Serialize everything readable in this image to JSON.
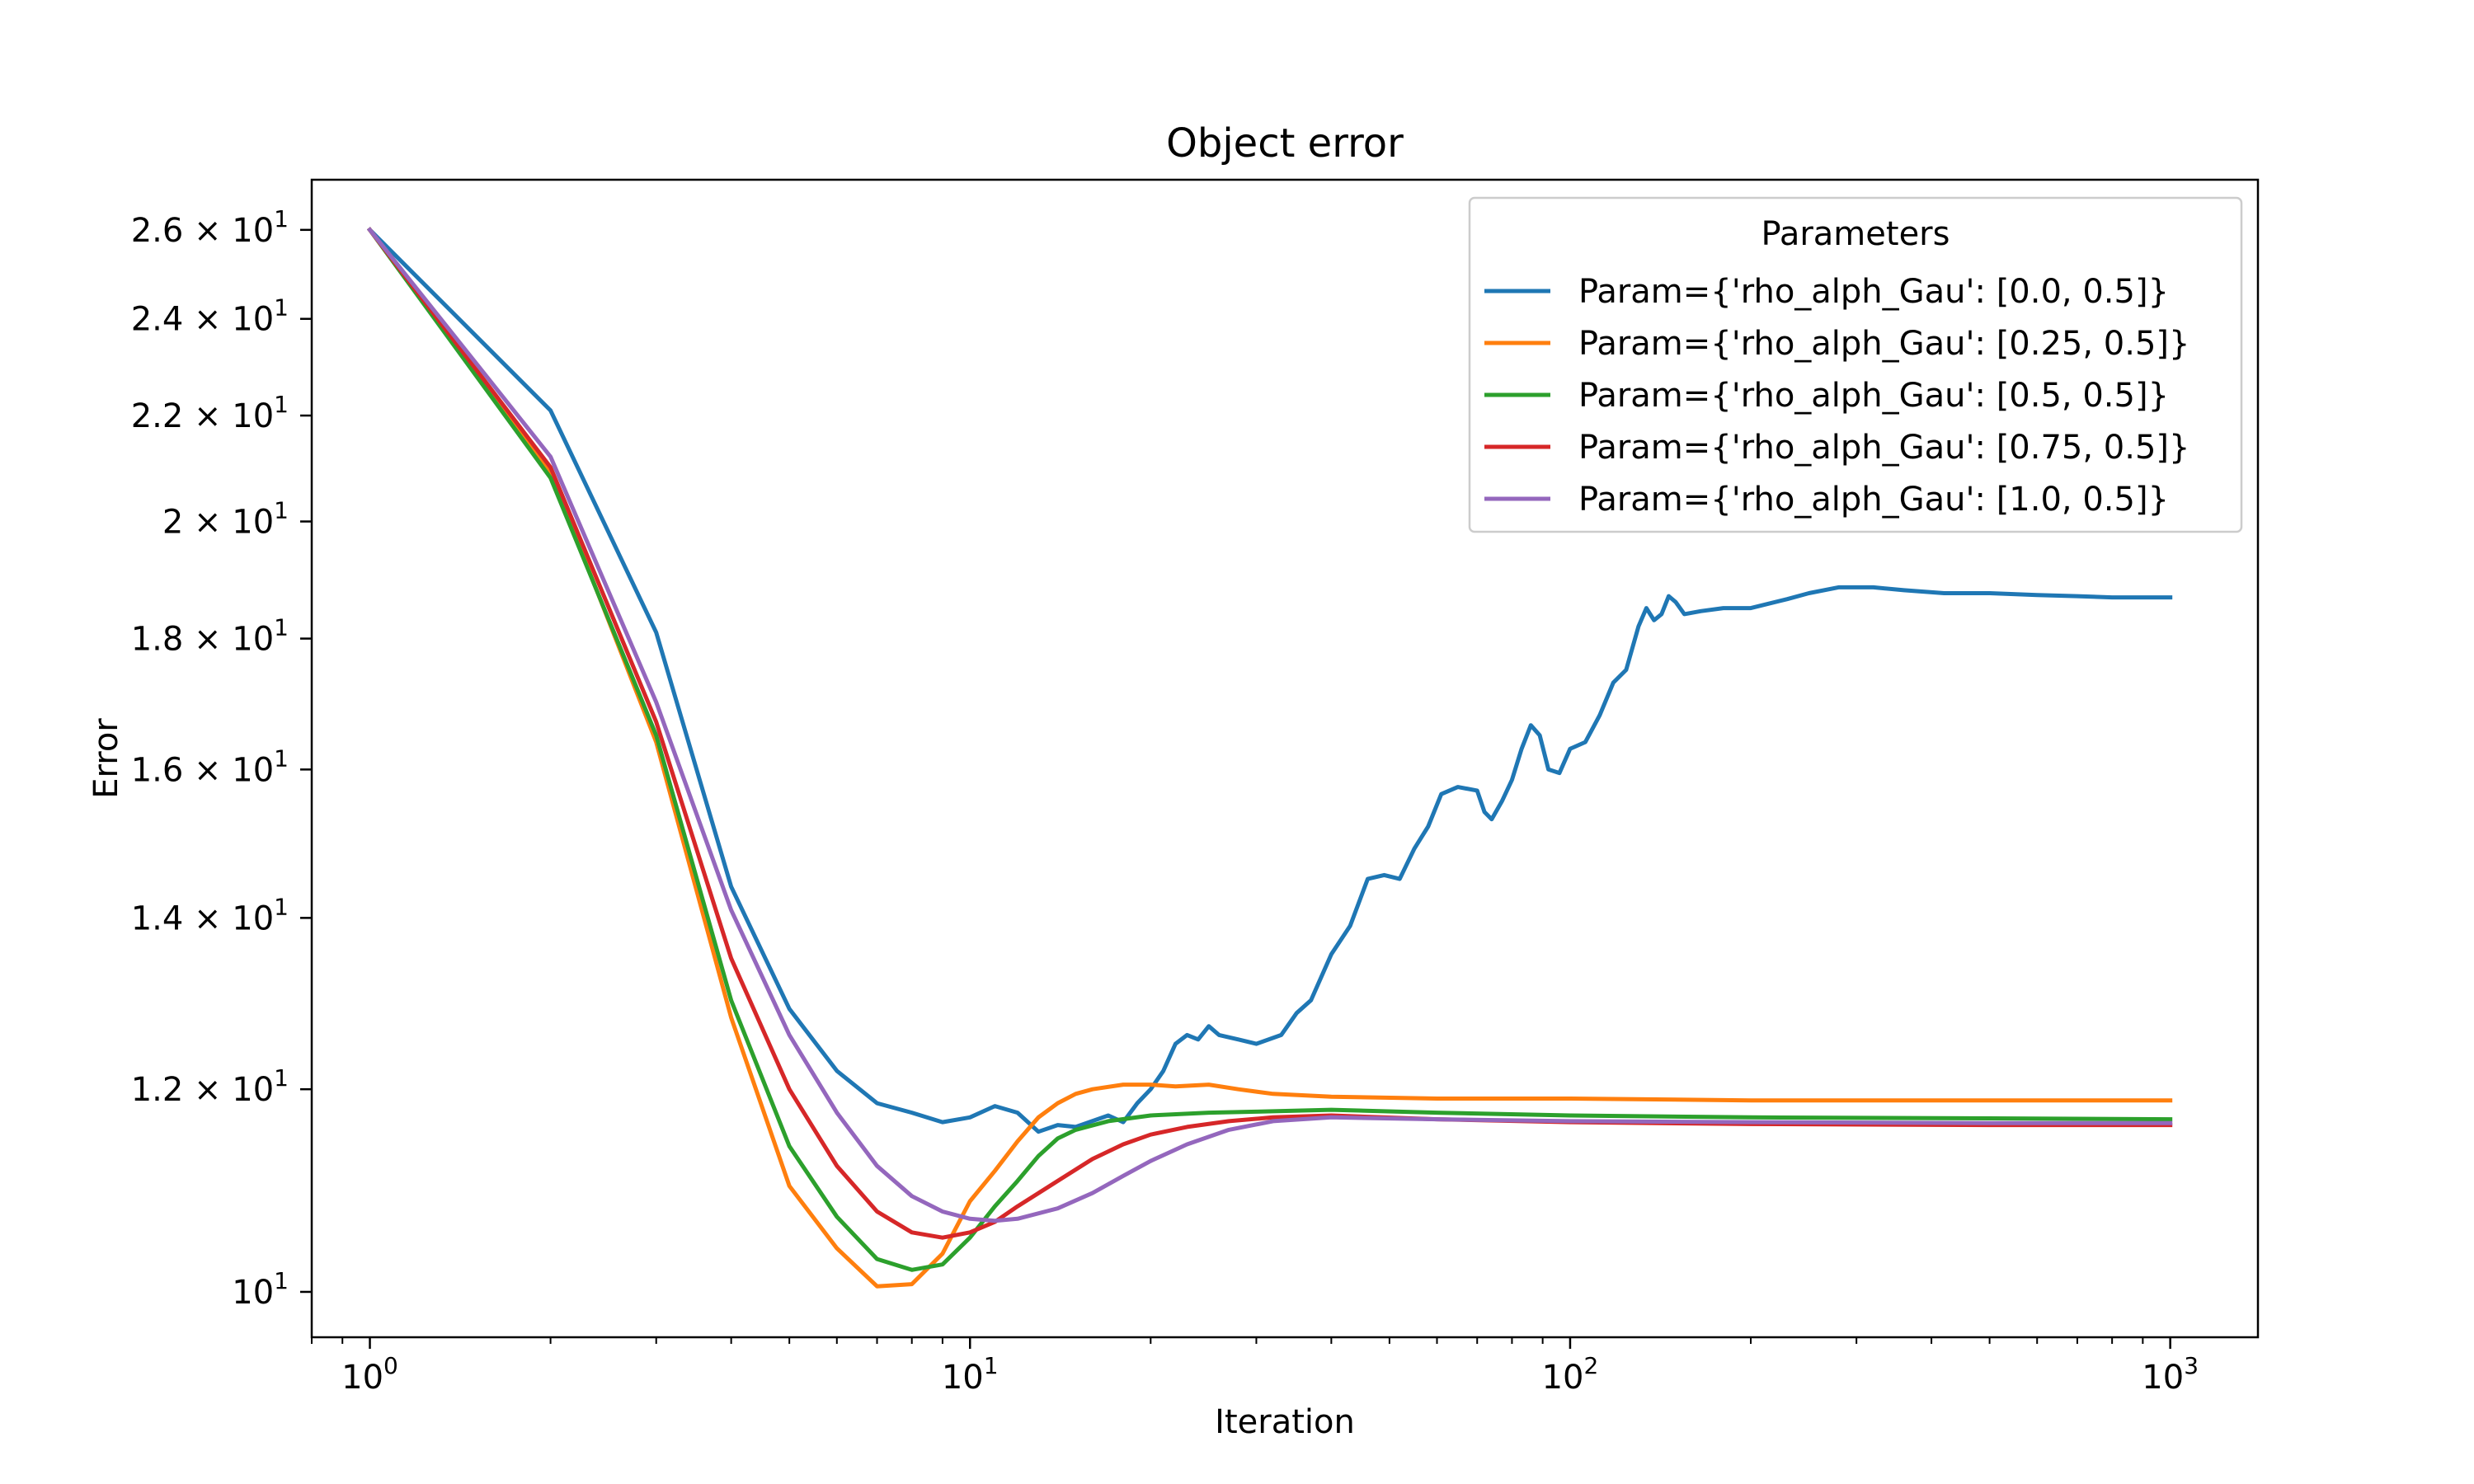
{
  "chart_data": {
    "type": "line",
    "title": "Object error",
    "xlabel": "Iteration",
    "ylabel": "Error",
    "xscale": "log",
    "yscale": "log",
    "xlim": [
      0.8,
      1400
    ],
    "ylim": [
      9.6,
      27.2
    ],
    "grid": false,
    "legend": {
      "title": "Parameters",
      "placement": "top-right"
    },
    "x_ticks": [
      {
        "value": 1,
        "base": "10",
        "exp": "0"
      },
      {
        "value": 10,
        "base": "10",
        "exp": "1"
      },
      {
        "value": 100,
        "base": "10",
        "exp": "2"
      },
      {
        "value": 1000,
        "base": "10",
        "exp": "3"
      }
    ],
    "y_ticks": [
      {
        "value": 10,
        "mant": "",
        "exp": "1"
      },
      {
        "value": 12,
        "mant": "1.2",
        "exp": "1"
      },
      {
        "value": 14,
        "mant": "1.4",
        "exp": "1"
      },
      {
        "value": 16,
        "mant": "1.6",
        "exp": "1"
      },
      {
        "value": 18,
        "mant": "1.8",
        "exp": "1"
      },
      {
        "value": 20,
        "mant": "2",
        "exp": "1"
      },
      {
        "value": 22,
        "mant": "2.2",
        "exp": "1"
      },
      {
        "value": 24,
        "mant": "2.4",
        "exp": "1"
      },
      {
        "value": 26,
        "mant": "2.6",
        "exp": "1"
      }
    ],
    "series": [
      {
        "name": "Param={'rho_alph_Gau': [0.0, 0.5]}",
        "color": "#1f77b4",
        "points": [
          [
            1,
            26.0
          ],
          [
            2,
            22.1
          ],
          [
            3,
            18.1
          ],
          [
            4,
            14.4
          ],
          [
            5,
            12.9
          ],
          [
            6,
            12.2
          ],
          [
            7,
            11.85
          ],
          [
            8,
            11.75
          ],
          [
            9,
            11.65
          ],
          [
            10,
            11.7
          ],
          [
            11,
            11.82
          ],
          [
            12,
            11.75
          ],
          [
            13,
            11.55
          ],
          [
            14,
            11.62
          ],
          [
            15,
            11.6
          ],
          [
            17,
            11.72
          ],
          [
            18,
            11.65
          ],
          [
            19,
            11.85
          ],
          [
            20,
            12.0
          ],
          [
            21,
            12.2
          ],
          [
            22,
            12.5
          ],
          [
            23,
            12.6
          ],
          [
            24,
            12.55
          ],
          [
            25,
            12.7
          ],
          [
            26,
            12.6
          ],
          [
            28,
            12.55
          ],
          [
            30,
            12.5
          ],
          [
            33,
            12.6
          ],
          [
            35,
            12.85
          ],
          [
            37,
            13.0
          ],
          [
            40,
            13.55
          ],
          [
            43,
            13.9
          ],
          [
            46,
            14.5
          ],
          [
            49,
            14.55
          ],
          [
            52,
            14.5
          ],
          [
            55,
            14.9
          ],
          [
            58,
            15.2
          ],
          [
            61,
            15.65
          ],
          [
            65,
            15.75
          ],
          [
            70,
            15.7
          ],
          [
            72,
            15.4
          ],
          [
            74,
            15.3
          ],
          [
            77,
            15.55
          ],
          [
            80,
            15.85
          ],
          [
            83,
            16.3
          ],
          [
            86,
            16.65
          ],
          [
            89,
            16.5
          ],
          [
            92,
            16.0
          ],
          [
            96,
            15.95
          ],
          [
            100,
            16.3
          ],
          [
            106,
            16.4
          ],
          [
            112,
            16.8
          ],
          [
            118,
            17.3
          ],
          [
            124,
            17.5
          ],
          [
            130,
            18.2
          ],
          [
            134,
            18.5
          ],
          [
            138,
            18.3
          ],
          [
            142,
            18.4
          ],
          [
            146,
            18.7
          ],
          [
            150,
            18.6
          ],
          [
            155,
            18.4
          ],
          [
            165,
            18.45
          ],
          [
            180,
            18.5
          ],
          [
            200,
            18.5
          ],
          [
            230,
            18.65
          ],
          [
            250,
            18.75
          ],
          [
            280,
            18.85
          ],
          [
            320,
            18.85
          ],
          [
            360,
            18.8
          ],
          [
            420,
            18.75
          ],
          [
            500,
            18.75
          ],
          [
            600,
            18.72
          ],
          [
            700,
            18.7
          ],
          [
            800,
            18.68
          ],
          [
            1000,
            18.68
          ]
        ]
      },
      {
        "name": "Param={'rho_alph_Gau': [0.25, 0.5]}",
        "color": "#ff7f0e",
        "points": [
          [
            1,
            26.0
          ],
          [
            2,
            20.9
          ],
          [
            3,
            16.4
          ],
          [
            4,
            12.8
          ],
          [
            5,
            11.0
          ],
          [
            6,
            10.4
          ],
          [
            7,
            10.05
          ],
          [
            8,
            10.07
          ],
          [
            9,
            10.35
          ],
          [
            10,
            10.85
          ],
          [
            11,
            11.15
          ],
          [
            12,
            11.45
          ],
          [
            13,
            11.7
          ],
          [
            14,
            11.85
          ],
          [
            15,
            11.95
          ],
          [
            16,
            12.0
          ],
          [
            18,
            12.05
          ],
          [
            20,
            12.05
          ],
          [
            22,
            12.03
          ],
          [
            25,
            12.05
          ],
          [
            28,
            12.0
          ],
          [
            32,
            11.95
          ],
          [
            40,
            11.92
          ],
          [
            60,
            11.9
          ],
          [
            100,
            11.9
          ],
          [
            200,
            11.88
          ],
          [
            500,
            11.88
          ],
          [
            1000,
            11.88
          ]
        ]
      },
      {
        "name": "Param={'rho_alph_Gau': [0.5, 0.5]}",
        "color": "#2ca02c",
        "points": [
          [
            1,
            26.0
          ],
          [
            2,
            20.8
          ],
          [
            3,
            16.5
          ],
          [
            4,
            13.0
          ],
          [
            5,
            11.4
          ],
          [
            6,
            10.7
          ],
          [
            7,
            10.3
          ],
          [
            8,
            10.2
          ],
          [
            9,
            10.25
          ],
          [
            10,
            10.5
          ],
          [
            11,
            10.8
          ],
          [
            12,
            11.05
          ],
          [
            13,
            11.3
          ],
          [
            14,
            11.48
          ],
          [
            15,
            11.57
          ],
          [
            17,
            11.66
          ],
          [
            20,
            11.72
          ],
          [
            25,
            11.75
          ],
          [
            30,
            11.76
          ],
          [
            40,
            11.78
          ],
          [
            60,
            11.75
          ],
          [
            100,
            11.72
          ],
          [
            200,
            11.7
          ],
          [
            500,
            11.69
          ],
          [
            1000,
            11.68
          ]
        ]
      },
      {
        "name": "Param={'rho_alph_Gau': [0.75, 0.5]}",
        "color": "#d62728",
        "points": [
          [
            1,
            26.0
          ],
          [
            2,
            21.0
          ],
          [
            3,
            16.7
          ],
          [
            4,
            13.5
          ],
          [
            5,
            12.0
          ],
          [
            6,
            11.2
          ],
          [
            7,
            10.75
          ],
          [
            8,
            10.55
          ],
          [
            9,
            10.5
          ],
          [
            10,
            10.55
          ],
          [
            11,
            10.65
          ],
          [
            12,
            10.8
          ],
          [
            14,
            11.05
          ],
          [
            16,
            11.27
          ],
          [
            18,
            11.42
          ],
          [
            20,
            11.52
          ],
          [
            23,
            11.6
          ],
          [
            27,
            11.66
          ],
          [
            32,
            11.7
          ],
          [
            40,
            11.72
          ],
          [
            60,
            11.68
          ],
          [
            100,
            11.65
          ],
          [
            200,
            11.63
          ],
          [
            500,
            11.62
          ],
          [
            1000,
            11.62
          ]
        ]
      },
      {
        "name": "Param={'rho_alph_Gau': [1.0, 0.5]}",
        "color": "#9467bd",
        "points": [
          [
            1,
            26.0
          ],
          [
            2,
            21.2
          ],
          [
            3,
            17.0
          ],
          [
            4,
            14.1
          ],
          [
            5,
            12.6
          ],
          [
            6,
            11.75
          ],
          [
            7,
            11.2
          ],
          [
            8,
            10.9
          ],
          [
            9,
            10.75
          ],
          [
            10,
            10.68
          ],
          [
            11,
            10.66
          ],
          [
            12,
            10.68
          ],
          [
            14,
            10.78
          ],
          [
            16,
            10.93
          ],
          [
            18,
            11.1
          ],
          [
            20,
            11.25
          ],
          [
            23,
            11.42
          ],
          [
            27,
            11.57
          ],
          [
            32,
            11.66
          ],
          [
            40,
            11.7
          ],
          [
            60,
            11.68
          ],
          [
            100,
            11.66
          ],
          [
            200,
            11.65
          ],
          [
            500,
            11.64
          ],
          [
            1000,
            11.64
          ]
        ]
      }
    ]
  }
}
